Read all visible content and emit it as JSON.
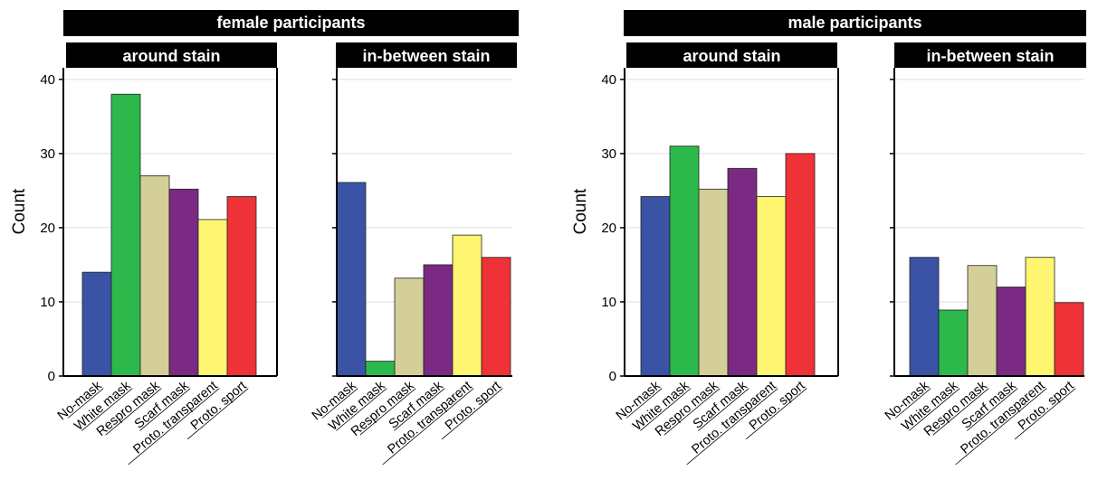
{
  "chart_data": {
    "type": "bar",
    "ylabel": "Count",
    "ylim": [
      0,
      44
    ],
    "yticks": [
      0,
      10,
      20,
      30,
      40
    ],
    "grid": true,
    "categories": [
      "No-mask",
      "White mask",
      "Respro mask",
      "Scarf mask",
      "Proto. transparent",
      "Proto. sport"
    ],
    "category_colors": [
      "#3a53a5",
      "#2db84b",
      "#d4cf98",
      "#7a2a82",
      "#fef571",
      "#ef3237"
    ],
    "groups": [
      {
        "title": "female participants",
        "panels": [
          {
            "title": "around stain",
            "values": [
              14,
              38,
              27,
              25.2,
              21.1,
              24.2
            ]
          },
          {
            "title": "in-between stain",
            "values": [
              26.1,
              2,
              13.2,
              15,
              19,
              16
            ]
          }
        ]
      },
      {
        "title": "male participants",
        "panels": [
          {
            "title": "around stain",
            "values": [
              24.2,
              31,
              25.2,
              28,
              24.2,
              30
            ]
          },
          {
            "title": "in-between stain",
            "values": [
              16,
              8.9,
              14.9,
              12,
              16,
              9.9
            ]
          }
        ]
      }
    ]
  }
}
